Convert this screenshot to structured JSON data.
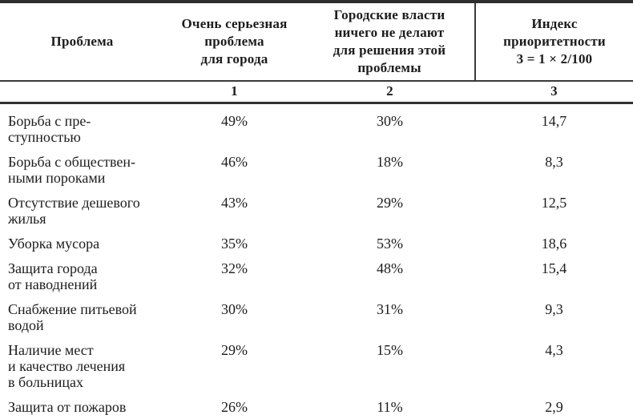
{
  "page": {
    "background": "#ffffff",
    "text_color": "#1c1c1c",
    "rule_color": "#333333"
  },
  "table": {
    "header": {
      "problem": "Проблема",
      "col1": "Очень серьезная\nпроблема\nдля города",
      "col2": "Городские власти\nничего не делают\nдля решения этой\nпроблемы",
      "col3": "Индекс\nприоритетности\n3 = 1 × 2/100",
      "numbers": {
        "col1": "1",
        "col2": "2",
        "col3": "3"
      }
    },
    "rows": [
      {
        "problem": "Борьба с пре-\nступностью",
        "col1": "49%",
        "col2": "30%",
        "col3": "14,7"
      },
      {
        "problem": "Борьба с обществен-\nными пороками",
        "col1": "46%",
        "col2": "18%",
        "col3": "8,3"
      },
      {
        "problem": "Отсутствие дешевого\nжилья",
        "col1": "43%",
        "col2": "29%",
        "col3": "12,5"
      },
      {
        "problem": "Уборка мусора",
        "col1": "35%",
        "col2": "53%",
        "col3": "18,6"
      },
      {
        "problem": "Защита города\nот наводнений",
        "col1": "32%",
        "col2": "48%",
        "col3": "15,4"
      },
      {
        "problem": "Снабжение питьевой\nводой",
        "col1": "30%",
        "col2": "31%",
        "col3": "9,3"
      },
      {
        "problem": "Наличие мест\nи качество лечения\nв больницах",
        "col1": "29%",
        "col2": "15%",
        "col3": "4,3"
      },
      {
        "problem": "Защита от пожаров",
        "col1": "26%",
        "col2": "11%",
        "col3": "2,9"
      }
    ]
  }
}
